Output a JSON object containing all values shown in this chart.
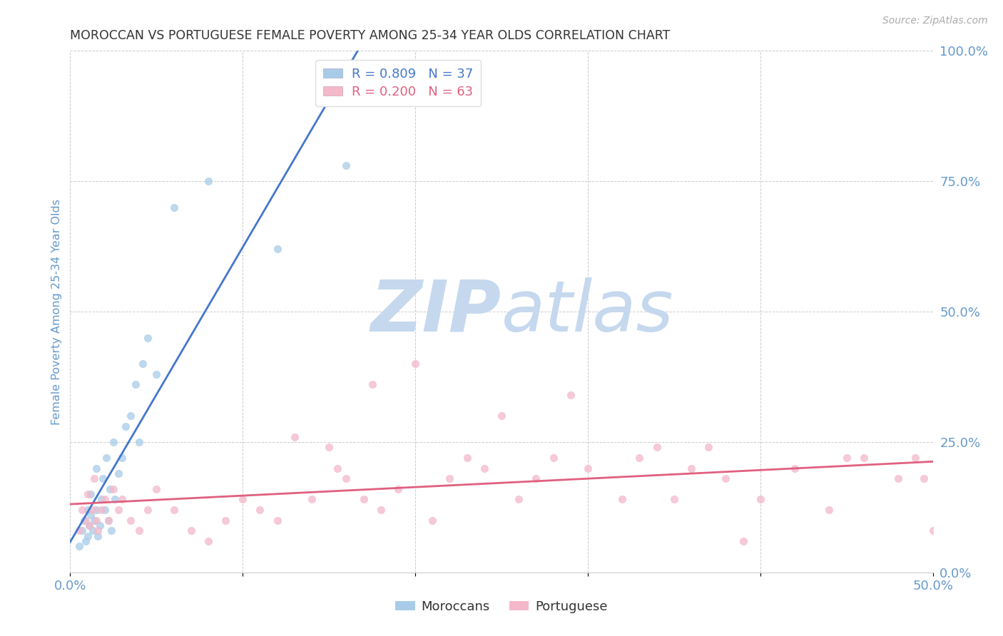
{
  "title": "MOROCCAN VS PORTUGUESE FEMALE POVERTY AMONG 25-34 YEAR OLDS CORRELATION CHART",
  "source": "Source: ZipAtlas.com",
  "ylabel": "Female Poverty Among 25-34 Year Olds",
  "yticks": [
    "0.0%",
    "25.0%",
    "50.0%",
    "75.0%",
    "100.0%"
  ],
  "ytick_vals": [
    0.0,
    0.25,
    0.5,
    0.75,
    1.0
  ],
  "xtick_labels": [
    "0.0%",
    "",
    "",
    "",
    "",
    "50.0%"
  ],
  "xtick_vals": [
    0.0,
    0.1,
    0.2,
    0.3,
    0.4,
    0.5
  ],
  "xlim": [
    0.0,
    0.5
  ],
  "ylim": [
    0.0,
    1.0
  ],
  "moroccan_color": "#a8cce8",
  "portuguese_color": "#f4b8ca",
  "moroccan_line_color": "#4477cc",
  "portuguese_line_color": "#e06080",
  "legend_moroccan_label": "Moroccans",
  "legend_portuguese_label": "Portuguese",
  "R_moroccan": 0.809,
  "N_moroccan": 37,
  "R_portuguese": 0.2,
  "N_portuguese": 63,
  "moroccan_scatter_x": [
    0.005,
    0.007,
    0.008,
    0.009,
    0.01,
    0.01,
    0.011,
    0.012,
    0.012,
    0.013,
    0.014,
    0.015,
    0.015,
    0.016,
    0.017,
    0.018,
    0.019,
    0.02,
    0.021,
    0.022,
    0.023,
    0.024,
    0.025,
    0.026,
    0.028,
    0.03,
    0.032,
    0.035,
    0.038,
    0.04,
    0.042,
    0.045,
    0.05,
    0.06,
    0.08,
    0.12,
    0.16
  ],
  "moroccan_scatter_y": [
    0.05,
    0.08,
    0.1,
    0.06,
    0.07,
    0.12,
    0.09,
    0.11,
    0.15,
    0.08,
    0.1,
    0.12,
    0.2,
    0.07,
    0.09,
    0.14,
    0.18,
    0.12,
    0.22,
    0.1,
    0.16,
    0.08,
    0.25,
    0.14,
    0.19,
    0.22,
    0.28,
    0.3,
    0.36,
    0.25,
    0.4,
    0.45,
    0.38,
    0.7,
    0.75,
    0.62,
    0.78
  ],
  "portuguese_scatter_x": [
    0.005,
    0.007,
    0.009,
    0.01,
    0.011,
    0.013,
    0.014,
    0.015,
    0.016,
    0.018,
    0.02,
    0.022,
    0.025,
    0.028,
    0.03,
    0.035,
    0.04,
    0.045,
    0.05,
    0.06,
    0.07,
    0.08,
    0.09,
    0.1,
    0.11,
    0.12,
    0.13,
    0.14,
    0.15,
    0.155,
    0.16,
    0.17,
    0.175,
    0.18,
    0.19,
    0.2,
    0.21,
    0.22,
    0.23,
    0.24,
    0.25,
    0.26,
    0.27,
    0.28,
    0.29,
    0.3,
    0.32,
    0.33,
    0.34,
    0.35,
    0.36,
    0.37,
    0.38,
    0.39,
    0.4,
    0.42,
    0.44,
    0.45,
    0.46,
    0.48,
    0.49,
    0.495,
    0.5
  ],
  "portuguese_scatter_y": [
    0.08,
    0.12,
    0.1,
    0.15,
    0.09,
    0.12,
    0.18,
    0.1,
    0.08,
    0.12,
    0.14,
    0.1,
    0.16,
    0.12,
    0.14,
    0.1,
    0.08,
    0.12,
    0.16,
    0.12,
    0.08,
    0.06,
    0.1,
    0.14,
    0.12,
    0.1,
    0.26,
    0.14,
    0.24,
    0.2,
    0.18,
    0.14,
    0.36,
    0.12,
    0.16,
    0.4,
    0.1,
    0.18,
    0.22,
    0.2,
    0.3,
    0.14,
    0.18,
    0.22,
    0.34,
    0.2,
    0.14,
    0.22,
    0.24,
    0.14,
    0.2,
    0.24,
    0.18,
    0.06,
    0.14,
    0.2,
    0.12,
    0.22,
    0.22,
    0.18,
    0.22,
    0.18,
    0.08
  ],
  "background_color": "#ffffff",
  "grid_color": "#cccccc",
  "title_color": "#333333",
  "axis_label_color": "#6699cc",
  "tick_label_color": "#6699cc",
  "watermark_zip_color": "#c5d8ee",
  "watermark_atlas_color": "#c5d8ee",
  "watermark_fontsize": 72,
  "marker_size": 55,
  "line_width": 2.0
}
